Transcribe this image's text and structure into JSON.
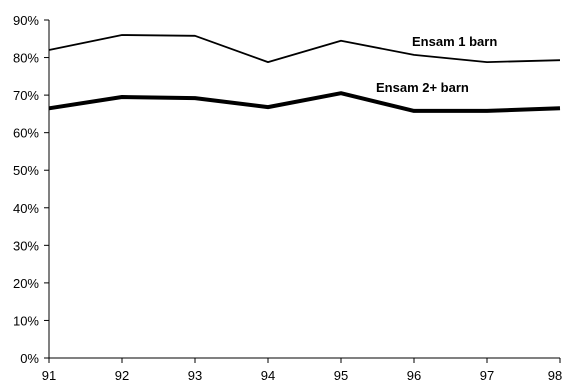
{
  "chart_data": {
    "type": "line",
    "x": [
      "91",
      "92",
      "93",
      "94",
      "95",
      "96",
      "97",
      "98"
    ],
    "ylim": [
      0,
      90
    ],
    "yticks": [
      "0%",
      "10%",
      "20%",
      "30%",
      "40%",
      "50%",
      "60%",
      "70%",
      "80%",
      "90%"
    ],
    "grid": false,
    "legend": "inline labels",
    "series": [
      {
        "name": "Ensam 1 barn",
        "values": [
          82,
          86,
          85.8,
          78.8,
          84.5,
          80.7,
          78.8,
          79.3
        ],
        "color": "#000000",
        "weight": "thin"
      },
      {
        "name": "Ensam 2+ barn",
        "values": [
          66.5,
          69.5,
          69.2,
          66.8,
          70.5,
          65.8,
          65.8,
          66.5
        ],
        "color": "#000000",
        "weight": "thick"
      }
    ]
  }
}
